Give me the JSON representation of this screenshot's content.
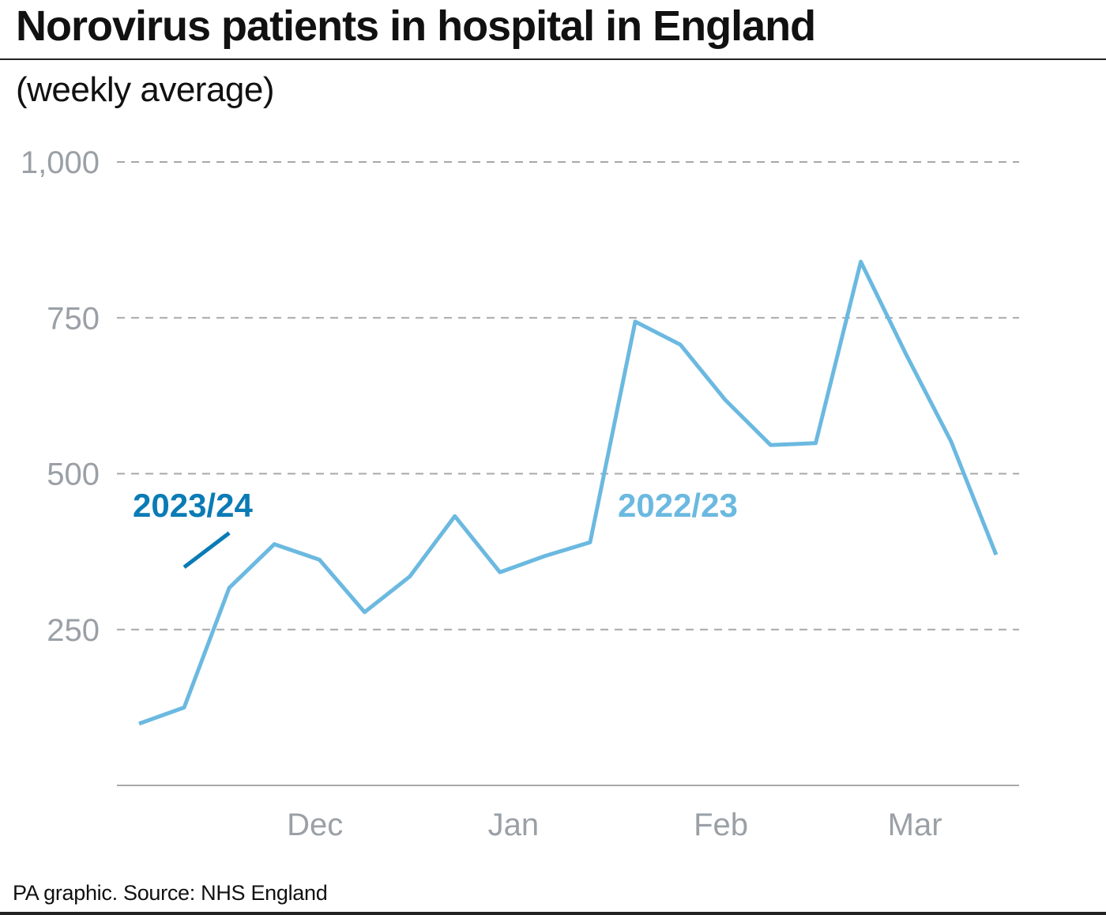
{
  "header": {
    "title": "Norovirus patients in hospital in England",
    "subtitle": "(weekly average)"
  },
  "footer": {
    "source": "PA graphic. Source: NHS England"
  },
  "colors": {
    "series_2022_23": "#6bb9e0",
    "series_2023_24": "#0a7bb5",
    "gridline": "#a8a8a8",
    "axis": "#a8a8a8",
    "tick_text": "#9aa0a6"
  },
  "chart_data": {
    "type": "line",
    "title": "Norovirus patients in hospital in England",
    "subtitle": "(weekly average)",
    "ylim": [
      0,
      1000
    ],
    "yticks": [
      250,
      500,
      750,
      1000
    ],
    "ytick_labels": [
      "250",
      "500",
      "750",
      "1,000"
    ],
    "grid": true,
    "xlim": [
      0,
      19.8
    ],
    "x_week_index": [
      0,
      1,
      2,
      3,
      4,
      5,
      6,
      7,
      8,
      9,
      10,
      11,
      12,
      13,
      14,
      15,
      16,
      17,
      18,
      19
    ],
    "month_labels": [
      {
        "label": "Dec",
        "x": 3.9
      },
      {
        "label": "Jan",
        "x": 8.3
      },
      {
        "label": "Feb",
        "x": 12.9
      },
      {
        "label": "Mar",
        "x": 17.2
      }
    ],
    "series": [
      {
        "name": "2022/23",
        "x": [
          0,
          1,
          2,
          3,
          4,
          5,
          6,
          7,
          8,
          9,
          10,
          11,
          12,
          13,
          14,
          15,
          16,
          17,
          18,
          19
        ],
        "values": [
          99,
          125,
          317,
          387,
          362,
          278,
          335,
          432,
          342,
          368,
          390,
          744,
          707,
          618,
          546,
          549,
          840,
          692,
          552,
          370
        ]
      },
      {
        "name": "2023/24",
        "x": [
          1,
          2
        ],
        "values": [
          350,
          405
        ]
      }
    ]
  }
}
